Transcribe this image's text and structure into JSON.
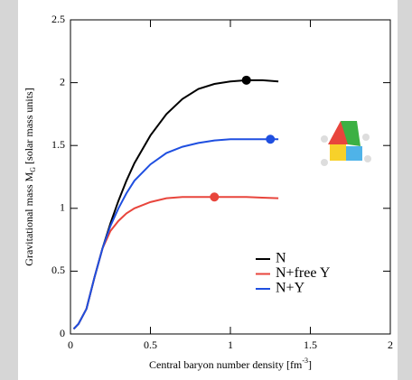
{
  "chart_data": {
    "type": "line",
    "xlabel": {
      "text": "Central baryon number density [fm",
      "sup": "-3",
      "end": "]"
    },
    "ylabel": {
      "text": "Gravitational mass M",
      "sub": "G",
      "end": " [solar mass units]"
    },
    "x": [
      0.02,
      0.05,
      0.1,
      0.15,
      0.2,
      0.25,
      0.3,
      0.35,
      0.4,
      0.5,
      0.6,
      0.7,
      0.8,
      0.9,
      1.0,
      1.1,
      1.2,
      1.3
    ],
    "series": [
      {
        "name": "N",
        "color": "#000000",
        "values": [
          0.04,
          0.08,
          0.2,
          0.45,
          0.68,
          0.88,
          1.06,
          1.22,
          1.36,
          1.58,
          1.75,
          1.87,
          1.95,
          1.99,
          2.01,
          2.02,
          2.02,
          2.01
        ],
        "max_x": 1.1,
        "max_value": 2.02
      },
      {
        "name": "N+free Y",
        "color": "#e8453c",
        "values": [
          0.04,
          0.08,
          0.2,
          0.45,
          0.68,
          0.82,
          0.9,
          0.96,
          1.0,
          1.05,
          1.08,
          1.09,
          1.09,
          1.09,
          1.09,
          1.09,
          1.085,
          1.08
        ],
        "max_x": 0.9,
        "max_value": 1.09
      },
      {
        "name": "N+Y",
        "color": "#1f4fe0",
        "values": [
          0.04,
          0.08,
          0.2,
          0.45,
          0.68,
          0.86,
          1.0,
          1.12,
          1.22,
          1.35,
          1.44,
          1.49,
          1.52,
          1.54,
          1.55,
          1.55,
          1.55,
          1.55
        ],
        "max_x": 1.25,
        "max_value": 1.55
      }
    ],
    "xlim": [
      0,
      2
    ],
    "ylim": [
      0,
      2.5
    ],
    "xticks": [
      0,
      0.5,
      1,
      1.5,
      2
    ],
    "yticks": [
      0,
      0.5,
      1,
      1.5,
      2,
      2.5
    ],
    "legend": "lower right"
  }
}
